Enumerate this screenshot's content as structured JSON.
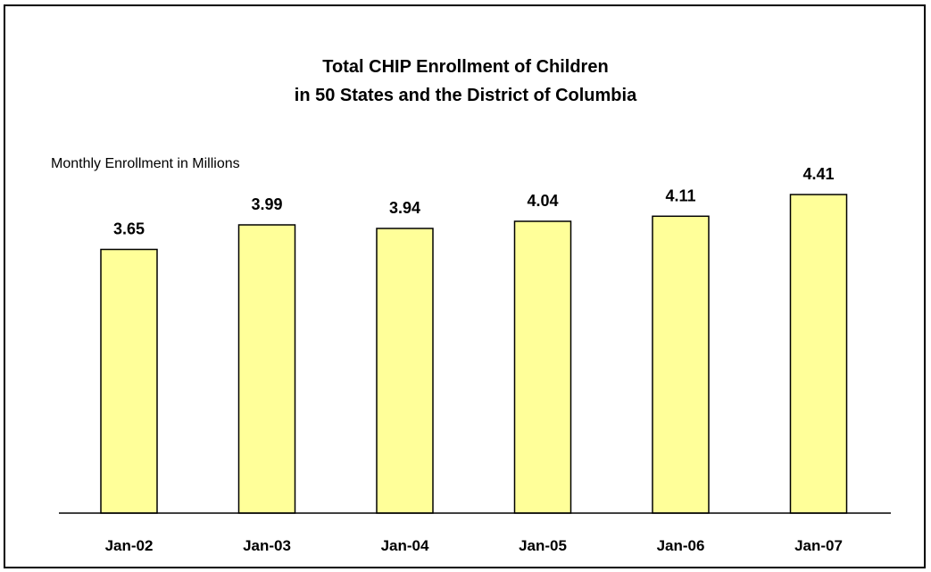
{
  "chart_data": {
    "type": "bar",
    "title_lines": [
      "Total CHIP Enrollment of Children",
      "in 50 States and the District of Columbia"
    ],
    "ylabel": "Monthly Enrollment in Millions",
    "xlabel": "",
    "categories": [
      "Jan-02",
      "Jan-03",
      "Jan-04",
      "Jan-05",
      "Jan-06",
      "Jan-07"
    ],
    "values": [
      3.65,
      3.99,
      3.94,
      4.04,
      4.11,
      4.41
    ],
    "data_labels": [
      "3.65",
      "3.99",
      "3.94",
      "4.04",
      "4.11",
      "4.41"
    ],
    "ylim": [
      0,
      4.41
    ],
    "grid": false,
    "legend": "none",
    "bar_color": "#FFFF99",
    "bar_edge_color": "#000000"
  }
}
